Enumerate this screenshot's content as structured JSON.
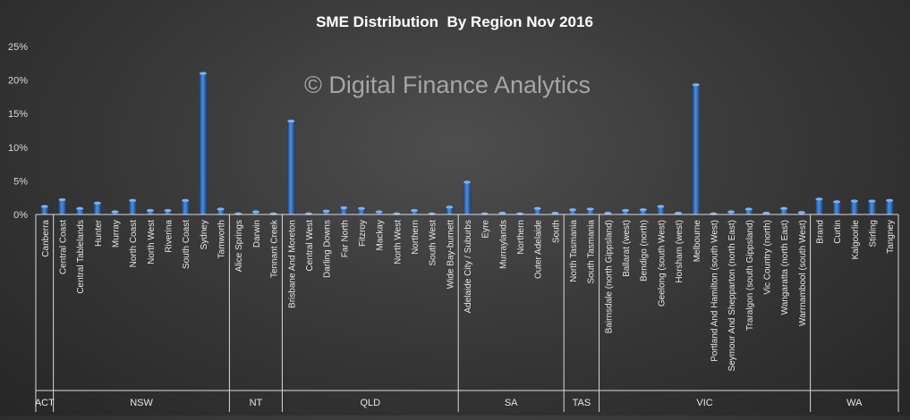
{
  "chart_data": {
    "type": "bar",
    "title": "SME Distribution  By Region Nov 2016",
    "watermark": "© Digital Finance Analytics",
    "ylim": [
      0,
      25
    ],
    "yticks": [
      "0%",
      "5%",
      "10%",
      "15%",
      "20%",
      "25%"
    ],
    "grid": false,
    "legend": "none",
    "bar_color": "#2e63a8",
    "categories": [
      "Canberra",
      "Central Coast",
      "Central Tablelands",
      "Hunter",
      "Murray",
      "North Coast",
      "North West",
      "Riverina",
      "South Coast",
      "Sydney",
      "Tamworth",
      "Alice Springs",
      "Darwin",
      "Tennant Creek",
      "Brisbane And Moreton",
      "Central West",
      "Darling Downs",
      "Far North",
      "Fitzroy",
      "Mackay",
      "North West",
      "Northern",
      "South West",
      "Wide Bay-burnett",
      "Adelaide City / Suburbs",
      "Eyre",
      "Murraylands",
      "Northern",
      "Outer Adelaide",
      "South",
      "North Tasmania",
      "South Tasmania",
      "Bairnsdale (north Gippsland)",
      "Ballarat (west)",
      "Bendigo (north)",
      "Geelong (south West)",
      "Horsham (west)",
      "Melbourne",
      "Portland And Hamilton (south West)",
      "Seymour And Shepparton (north East)",
      "Traralgon (south Gippsland)",
      "Vic Country (north)",
      "Wangaratta (north East)",
      "Warrnambool (south West)",
      "Brand",
      "Curtin",
      "Kalgoorlie",
      "Stirling",
      "Tangney"
    ],
    "values": [
      1.2,
      2.2,
      0.9,
      1.7,
      0.4,
      2.1,
      0.6,
      0.6,
      2.1,
      21.0,
      0.8,
      0.1,
      0.4,
      0.1,
      13.9,
      0.1,
      0.5,
      1.0,
      0.9,
      0.4,
      0.1,
      0.6,
      0.1,
      1.1,
      4.8,
      0.1,
      0.2,
      0.1,
      0.9,
      0.2,
      0.7,
      0.8,
      0.2,
      0.6,
      0.7,
      1.2,
      0.2,
      19.3,
      0.1,
      0.4,
      0.8,
      0.2,
      0.9,
      0.3,
      2.3,
      1.9,
      2.0,
      2.0,
      2.1
    ],
    "groups": [
      {
        "label": "ACT",
        "count": 1
      },
      {
        "label": "NSW",
        "count": 10
      },
      {
        "label": "NT",
        "count": 3
      },
      {
        "label": "QLD",
        "count": 10
      },
      {
        "label": "SA",
        "count": 6
      },
      {
        "label": "TAS",
        "count": 2
      },
      {
        "label": "VIC",
        "count": 12
      },
      {
        "label": "WA",
        "count": 5
      }
    ]
  }
}
